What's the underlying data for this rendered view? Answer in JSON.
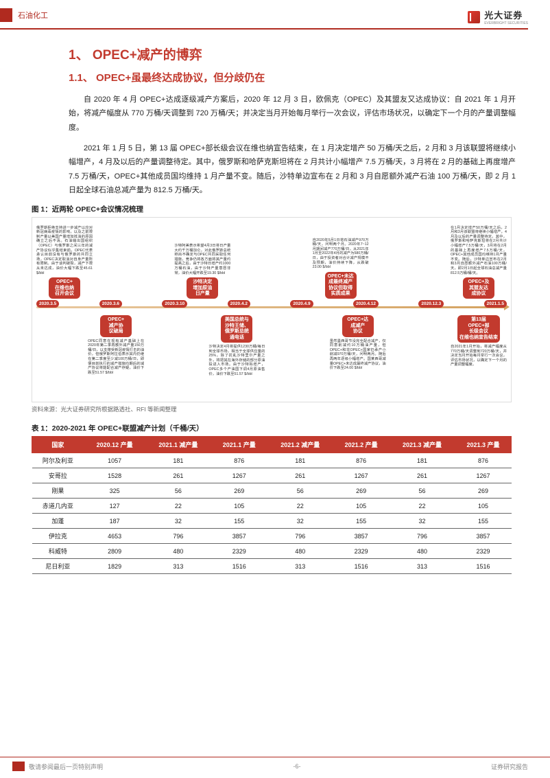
{
  "header": {
    "category": "石油化工",
    "logo_text": "光大证券",
    "logo_sub": "EVERBRIGHT SECURITIES"
  },
  "h1": "1、 OPEC+减产的博弈",
  "h2": "1.1、 OPEC+虽最终达成协议，但分歧仍在",
  "p1": "自 2020 年 4 月 OPEC+达成逐级减产方案后，2020 年 12 月 3 日，欧佩克（OPEC）及其盟友又达成协议：自 2021 年 1 月开始，将减产幅度从 770 万桶/天调整到 720 万桶/天；并决定当月开始每月举行一次会议，评估市场状况，以确定下一个月的产量调整幅度。",
  "p2": "2021 年 1 月 5 日，第 13 届 OPEC+部长级会议在维也纳宣告结束，在 1 月决定增产 50 万桶/天之后，2 月和 3 月该联盟将继续小幅增产，4 月及以后的产量调整待定。其中，俄罗斯和哈萨克斯坦将在 2 月共计小幅增产 7.5 万桶/天，3 月将在 2 月的基础上再度增产 7.5 万桶/天，OPEC+其他成员国均维持 1 月产量不变。随后，沙特单边宣布在 2 月和 3 月自愿额外减产石油 100 万桶/天，即 2 月 1 日起全球石油总减产量为 812.5 万桶/天。",
  "fig_cap": "图 1：近两轮 OPEC+会议情况梳理",
  "fig_src": "资料来源：光大证券研究所根据路透社、RFI 等新闻整理",
  "timeline": {
    "dates": [
      "2020.3.5",
      "2020.3.6",
      "2020.3.10",
      "2020.4.2",
      "2020.4.9",
      "2020.4.12",
      "2020.12.3",
      "2021.1.5"
    ],
    "top": [
      {
        "box": "OPEC+\n在维也纳\n召开会议",
        "desc": "俄罗斯拒绝支持进一步减产以应对新冠病毒疫情的影响，以及之前限制产量以美国产量增加抵消的原因确立之后不清。石油输出国组织（OPEC）与俄罗斯之间三年的减产协议似乎集结束前。OPEC代表承认目前没有与俄罗斯的共同立场，OPEC决定取消对自身产量所有限制。由于谈判破裂，减产下限从未达成，油价大幅下跌至45.61 $/bbl"
      },
      {
        "box": "沙特决定\n增加原油\n日产量",
        "desc": "沙特阿美表示希望4月3日将日产量大约千万桶加仑。对此俄罗斯总统称尚不确定与OPEC共同采取任何措施，竞争仍将各方面将其产量约提高之后，由于沙特日增产约1000万桶石油，由于沙特产量意愿非常，油价大幅开跌至19.30 $/bbl"
      },
      {
        "box": "OPEC+未达\n成最终减产\n协议但取得\n实质成果",
        "desc": "自2020年5月1日将石油减产970万桶/天，问明两个月。2020年7~12月期间减产770万桶/日，从2021年1月至2022年4月的减产为580万桶/日，由于投资者对合计减产规模不及预期，油价持续下降，从跌破23.00 $/bbl"
      },
      {
        "box": "OPEC+及\n其盟友达\n成协议",
        "desc": "在1月决定增产50万桶/天之后，2月和3月该联盟将继续小幅增产，4月及以后的产量调整待定。其中，俄罗斯和哈萨克斯坦将在2月共计小幅增产7.5万桶/天，3月将在2月的基础上再度增产7.5万桶/天，OPEC+其他成员国均维持1月产量不变。随后，沙特单边宣布在2月和3月自愿额外减产石油100万桶/天，即2月1日起全球石油总减产量812.5万桶/桶/天。"
      }
    ],
    "bottom": [
      {
        "box": "OPEC+\n减产协\n议破局",
        "desc": "OPEC同意在现有减产基础上在2020年第二季再额外减产量150万桶/日，以支撑受新冠疫情打击的油价，但俄罗斯阿拉伯表示其内仍继在第二季度至少减100万桶/日，即便目前执行的减产措施均期后的减产协议将能配合减产存疑，油价下跌至51.57 $/bbl"
      },
      {
        "box": "美国总统与\n沙特王储、\n俄罗斯总统\n通电话",
        "desc": "沙特决定4月将提供1230万桶/每日到全球市场，相当于全球供应量的25%，除了扰乱沙特里尔产量之外，将把其在海外存储的部分原油投进入市场。由于沙特拟增产，OPEC多个产油国下调4月原油售价，油价下跌至51.57 $/bbl"
      },
      {
        "box": "OPEC+达\n成减产\n协议",
        "desc": "虽然墨西哥节没完全配合减产，仅同意削减约10万桶油产量，但OPEC+和非OPEC+国家仍承产小削减970万桶/天，问明两月。随后再两年逐级小幅增产。国某西哥减量OPEC+未达成最终减产协议，油价下跌至24.00 $/bbl"
      },
      {
        "box": "第13届\nOPEC+部\n长级会议\n在维也纳宣告结束",
        "desc": "自2021年1月开始，将减产幅度从770万桶/天调整到720万桶/天，并决定当月开始每月举行一次会议，评估市场状况，以确定下一个月的产量调整幅度。"
      }
    ]
  },
  "tbl_cap": "表 1：2020-2021 年 OPEC+联盟减产计划（千桶/天）",
  "table": {
    "columns": [
      "国家",
      "2020.12 产量",
      "2021.1 减产量",
      "2021.1 产量",
      "2021.2 减产量",
      "2021.2 产量",
      "2021.3 减产量",
      "2021.3 产量"
    ],
    "rows": [
      [
        "阿尔及利亚",
        "1057",
        "181",
        "876",
        "181",
        "876",
        "181",
        "876"
      ],
      [
        "安哥拉",
        "1528",
        "261",
        "1267",
        "261",
        "1267",
        "261",
        "1267"
      ],
      [
        "刚果",
        "325",
        "56",
        "269",
        "56",
        "269",
        "56",
        "269"
      ],
      [
        "赤道几内亚",
        "127",
        "22",
        "105",
        "22",
        "105",
        "22",
        "105"
      ],
      [
        "加蓬",
        "187",
        "32",
        "155",
        "32",
        "155",
        "32",
        "155"
      ],
      [
        "伊拉克",
        "4653",
        "796",
        "3857",
        "796",
        "3857",
        "796",
        "3857"
      ],
      [
        "科威特",
        "2809",
        "480",
        "2329",
        "480",
        "2329",
        "480",
        "2329"
      ],
      [
        "尼日利亚",
        "1829",
        "313",
        "1516",
        "313",
        "1516",
        "313",
        "1516"
      ]
    ]
  },
  "footer": {
    "left": "敬请参阅最后一页特别声明",
    "page": "-6-",
    "right": "证券研究报告"
  },
  "colors": {
    "primary": "#c23a2e",
    "dark": "#b02a1f"
  }
}
